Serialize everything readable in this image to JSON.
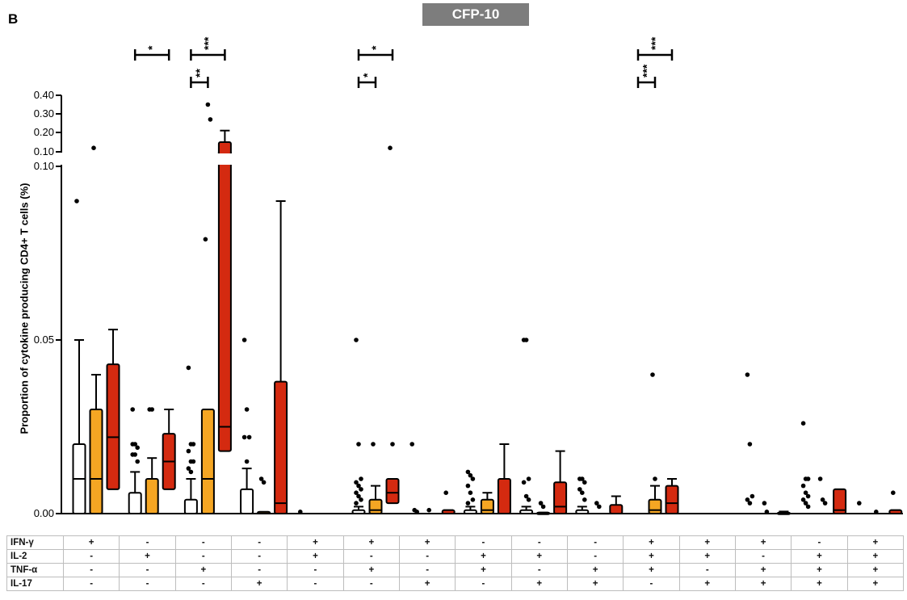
{
  "panel_label": "B",
  "title": "CFP-10",
  "chart_data": {
    "type": "box",
    "title": "CFP-10",
    "ylabel": "Proportion of cytokine producing CD4+ T cells (%)",
    "y_axis": {
      "broken": true,
      "lower_segment": {
        "range": [
          0,
          0.1
        ],
        "ticks": [
          "0.00",
          "0.05",
          "0.10"
        ]
      },
      "upper_segment": {
        "range": [
          0.1,
          0.4
        ],
        "ticks": [
          "0.10",
          "0.20",
          "0.30",
          "0.40"
        ]
      }
    },
    "groups_legend": [
      {
        "color": "#ffffff"
      },
      {
        "color": "#f5a623"
      },
      {
        "color": "#d42a10"
      }
    ],
    "boxes": [
      {
        "cat": 0,
        "pos": 0,
        "color": "#ffffff",
        "q1": 0,
        "median": 0.01,
        "q3": 0.02,
        "wlo": 0,
        "whi": 0.05,
        "outliers": [
          0.09
        ]
      },
      {
        "cat": 0,
        "pos": 1,
        "color": "#f5a623",
        "q1": 0,
        "median": 0.01,
        "q3": 0.03,
        "wlo": 0,
        "whi": 0.04,
        "outliers": [
          0.12
        ]
      },
      {
        "cat": 0,
        "pos": 2,
        "color": "#d42a10",
        "q1": 0.007,
        "median": 0.022,
        "q3": 0.043,
        "wlo": 0,
        "whi": 0.053,
        "outliers": []
      },
      {
        "cat": 1,
        "pos": 0,
        "color": "#ffffff",
        "q1": 0,
        "median": 0,
        "q3": 0.006,
        "wlo": 0,
        "whi": 0.012,
        "outliers": [
          0.02,
          0.02,
          0.019,
          0.017,
          0.017,
          0.015,
          0.03
        ]
      },
      {
        "cat": 1,
        "pos": 1,
        "color": "#f5a623",
        "q1": 0,
        "median": 0,
        "q3": 0.01,
        "wlo": 0,
        "whi": 0.016,
        "outliers": [
          0.03,
          0.03
        ]
      },
      {
        "cat": 1,
        "pos": 2,
        "color": "#d42a10",
        "q1": 0.007,
        "median": 0.015,
        "q3": 0.023,
        "wlo": 0,
        "whi": 0.03,
        "outliers": []
      },
      {
        "cat": 2,
        "pos": 0,
        "color": "#ffffff",
        "q1": 0,
        "median": 0,
        "q3": 0.004,
        "wlo": 0,
        "whi": 0.01,
        "outliers": [
          0.042,
          0.02,
          0.02,
          0.018,
          0.015,
          0.015,
          0.013,
          0.012
        ]
      },
      {
        "cat": 2,
        "pos": 1,
        "color": "#f5a623",
        "q1": 0,
        "median": 0.01,
        "q3": 0.03,
        "wlo": 0,
        "whi": 0.03,
        "outliers": [
          0.079,
          0.35,
          0.27
        ]
      },
      {
        "cat": 2,
        "pos": 2,
        "color": "#d42a10",
        "q1": 0.018,
        "median": 0.025,
        "q3": 0.15,
        "wlo": 0.01,
        "whi": 0.21,
        "outliers": []
      },
      {
        "cat": 3,
        "pos": 0,
        "color": "#ffffff",
        "q1": 0,
        "median": 0,
        "q3": 0.007,
        "wlo": 0,
        "whi": 0.013,
        "outliers": [
          0.05,
          0.03,
          0.022,
          0.022,
          0.015
        ]
      },
      {
        "cat": 3,
        "pos": 1,
        "color": "#f5a623",
        "q1": 0,
        "median": 0,
        "q3": 0.0005,
        "wlo": 0,
        "whi": 0.0005,
        "outliers": [
          0.01,
          0.009
        ]
      },
      {
        "cat": 3,
        "pos": 2,
        "color": "#d42a10",
        "q1": 0,
        "median": 0.003,
        "q3": 0.038,
        "wlo": 0,
        "whi": 0.09,
        "outliers": []
      },
      {
        "cat": 4,
        "pos": 0,
        "color": "#ffffff",
        "q1": 0,
        "median": 0,
        "q3": 0,
        "wlo": 0,
        "whi": 0,
        "outliers": [
          0.0005
        ]
      },
      {
        "cat": 5,
        "pos": 0,
        "color": "#ffffff",
        "q1": 0,
        "median": 0,
        "q3": 0.001,
        "wlo": 0,
        "whi": 0.002,
        "outliers": [
          0.05,
          0.02,
          0.01,
          0.009,
          0.008,
          0.007,
          0.006,
          0.005,
          0.004,
          0.003
        ]
      },
      {
        "cat": 5,
        "pos": 1,
        "color": "#f5a623",
        "q1": 0,
        "median": 0.001,
        "q3": 0.004,
        "wlo": 0,
        "whi": 0.008,
        "outliers": [
          0.02
        ]
      },
      {
        "cat": 5,
        "pos": 2,
        "color": "#d42a10",
        "q1": 0.003,
        "median": 0.006,
        "q3": 0.01,
        "wlo": 0,
        "whi": 0.01,
        "outliers": [
          0.12,
          0.02
        ]
      },
      {
        "cat": 6,
        "pos": 0,
        "color": "#ffffff",
        "q1": 0,
        "median": 0,
        "q3": 0,
        "wlo": 0,
        "whi": 0,
        "outliers": [
          0.02,
          0.001,
          0.0005
        ]
      },
      {
        "cat": 6,
        "pos": 1,
        "color": "#f5a623",
        "q1": 0,
        "median": 0,
        "q3": 0,
        "wlo": 0,
        "whi": 0,
        "outliers": [
          0.001
        ]
      },
      {
        "cat": 6,
        "pos": 2,
        "color": "#d42a10",
        "q1": 0,
        "median": 0,
        "q3": 0.001,
        "wlo": 0,
        "whi": 0.001,
        "outliers": [
          0.006
        ]
      },
      {
        "cat": 7,
        "pos": 0,
        "color": "#ffffff",
        "q1": 0,
        "median": 0,
        "q3": 0.001,
        "wlo": 0,
        "whi": 0.002,
        "outliers": [
          0.012,
          0.011,
          0.01,
          0.008,
          0.006,
          0.004,
          0.003
        ]
      },
      {
        "cat": 7,
        "pos": 1,
        "color": "#f5a623",
        "q1": 0,
        "median": 0.001,
        "q3": 0.004,
        "wlo": 0,
        "whi": 0.006,
        "outliers": []
      },
      {
        "cat": 7,
        "pos": 2,
        "color": "#d42a10",
        "q1": 0,
        "median": 0,
        "q3": 0.01,
        "wlo": 0,
        "whi": 0.02,
        "outliers": []
      },
      {
        "cat": 8,
        "pos": 0,
        "color": "#ffffff",
        "q1": 0,
        "median": 0,
        "q3": 0.001,
        "wlo": 0,
        "whi": 0.002,
        "outliers": [
          0.05,
          0.05,
          0.01,
          0.009,
          0.005,
          0.004
        ]
      },
      {
        "cat": 8,
        "pos": 1,
        "color": "#f5a623",
        "q1": 0,
        "median": 0,
        "q3": 0.0003,
        "wlo": 0,
        "whi": 0.0003,
        "outliers": [
          0.003,
          0.002
        ]
      },
      {
        "cat": 8,
        "pos": 2,
        "color": "#d42a10",
        "q1": 0,
        "median": 0.002,
        "q3": 0.009,
        "wlo": 0,
        "whi": 0.018,
        "outliers": []
      },
      {
        "cat": 9,
        "pos": 0,
        "color": "#ffffff",
        "q1": 0,
        "median": 0,
        "q3": 0.001,
        "wlo": 0,
        "whi": 0.002,
        "outliers": [
          0.01,
          0.01,
          0.009,
          0.007,
          0.006,
          0.004
        ]
      },
      {
        "cat": 9,
        "pos": 1,
        "color": "#f5a623",
        "q1": 0,
        "median": 0,
        "q3": 0,
        "wlo": 0,
        "whi": 0,
        "outliers": [
          0.003,
          0.002
        ]
      },
      {
        "cat": 9,
        "pos": 2,
        "color": "#d42a10",
        "q1": 0,
        "median": 0,
        "q3": 0.0025,
        "wlo": 0,
        "whi": 0.005,
        "outliers": []
      },
      {
        "cat": 10,
        "pos": 0,
        "color": "#ffffff",
        "q1": 0,
        "median": 0,
        "q3": 0,
        "wlo": 0,
        "whi": 0,
        "outliers": []
      },
      {
        "cat": 10,
        "pos": 1,
        "color": "#f5a623",
        "q1": 0,
        "median": 0.001,
        "q3": 0.004,
        "wlo": 0,
        "whi": 0.008,
        "outliers": [
          0.04,
          0.01
        ]
      },
      {
        "cat": 10,
        "pos": 2,
        "color": "#d42a10",
        "q1": 0,
        "median": 0.003,
        "q3": 0.008,
        "wlo": 0,
        "whi": 0.01,
        "outliers": []
      },
      {
        "cat": 12,
        "pos": 0,
        "color": "#ffffff",
        "q1": 0,
        "median": 0,
        "q3": 0,
        "wlo": 0,
        "whi": 0,
        "outliers": [
          0.04,
          0.02,
          0.005,
          0.004,
          0.003
        ]
      },
      {
        "cat": 12,
        "pos": 1,
        "color": "#f5a623",
        "q1": 0,
        "median": 0,
        "q3": 0,
        "wlo": 0,
        "whi": 0,
        "outliers": [
          0.003,
          0.0005
        ]
      },
      {
        "cat": 12,
        "pos": 2,
        "color": "#d42a10",
        "q1": 0,
        "median": 0,
        "q3": 0.0003,
        "wlo": 0,
        "whi": 0.0006,
        "outliers": []
      },
      {
        "cat": 13,
        "pos": 0,
        "color": "#ffffff",
        "q1": 0,
        "median": 0,
        "q3": 0,
        "wlo": 0,
        "whi": 0,
        "outliers": [
          0.026,
          0.01,
          0.01,
          0.008,
          0.006,
          0.005,
          0.004,
          0.003,
          0.002
        ]
      },
      {
        "cat": 13,
        "pos": 1,
        "color": "#f5a623",
        "q1": 0,
        "median": 0,
        "q3": 0,
        "wlo": 0,
        "whi": 0,
        "outliers": [
          0.01,
          0.004,
          0.003
        ]
      },
      {
        "cat": 13,
        "pos": 2,
        "color": "#d42a10",
        "q1": 0,
        "median": 0.001,
        "q3": 0.007,
        "wlo": 0,
        "whi": 0.007,
        "outliers": []
      },
      {
        "cat": 14,
        "pos": 0,
        "color": "#ffffff",
        "q1": 0,
        "median": 0,
        "q3": 0,
        "wlo": 0,
        "whi": 0,
        "outliers": [
          0.003
        ]
      },
      {
        "cat": 14,
        "pos": 1,
        "color": "#f5a623",
        "q1": 0,
        "median": 0,
        "q3": 0,
        "wlo": 0,
        "whi": 0,
        "outliers": [
          0.0005
        ]
      },
      {
        "cat": 14,
        "pos": 2,
        "color": "#d42a10",
        "q1": 0,
        "median": 0,
        "q3": 0.001,
        "wlo": 0,
        "whi": 0.001,
        "outliers": [
          0.006
        ]
      }
    ],
    "significance": [
      {
        "cat": 1,
        "from": 0,
        "to": 2,
        "tier": 1,
        "label": "*"
      },
      {
        "cat": 2,
        "from": 0,
        "to": 2,
        "tier": 1,
        "label": "***"
      },
      {
        "cat": 2,
        "from": 0,
        "to": 1,
        "tier": 0,
        "label": "**"
      },
      {
        "cat": 5,
        "from": 0,
        "to": 2,
        "tier": 1,
        "label": "*"
      },
      {
        "cat": 5,
        "from": 0,
        "to": 1,
        "tier": 0,
        "label": "*"
      },
      {
        "cat": 10,
        "from": 0,
        "to": 2,
        "tier": 1,
        "label": "***"
      },
      {
        "cat": 10,
        "from": 0,
        "to": 1,
        "tier": 0,
        "label": "***"
      }
    ],
    "combinations": {
      "rows": [
        {
          "label": "IFN-γ",
          "values": [
            "+",
            "-",
            "-",
            "-",
            "+",
            "+",
            "+",
            "-",
            "-",
            "-",
            "+",
            "+",
            "+",
            "-",
            "+"
          ]
        },
        {
          "label": "IL-2",
          "values": [
            "-",
            "+",
            "-",
            "-",
            "+",
            "-",
            "-",
            "+",
            "+",
            "-",
            "+",
            "+",
            "-",
            "+",
            "+"
          ]
        },
        {
          "label": "TNF-α",
          "values": [
            "-",
            "-",
            "+",
            "-",
            "-",
            "+",
            "-",
            "+",
            "-",
            "+",
            "+",
            "-",
            "+",
            "+",
            "+"
          ]
        },
        {
          "label": "IL-17",
          "values": [
            "-",
            "-",
            "-",
            "+",
            "-",
            "-",
            "+",
            "-",
            "+",
            "+",
            "-",
            "+",
            "+",
            "+",
            "+"
          ]
        }
      ]
    }
  }
}
